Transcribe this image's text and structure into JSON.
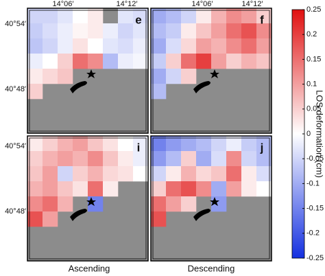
{
  "x_labels": [
    "14°06′",
    "14°12′"
  ],
  "y_labels": [
    "40°54′",
    "40°48′"
  ],
  "columns": [
    "Ascending",
    "Descending"
  ],
  "panels": [
    {
      "letter": "e",
      "grid": [
        [
          -0.05,
          -0.05,
          -0.03,
          0,
          0.02,
          null,
          -0.03,
          -0.04
        ],
        [
          -0.06,
          -0.04,
          -0.02,
          0.01,
          0.02,
          -0.02,
          -0.05,
          -0.03
        ],
        [
          -0.07,
          -0.05,
          -0.02,
          0.03,
          0,
          -0.03,
          -0.04,
          -0.02
        ],
        [
          -0.02,
          0,
          0.05,
          0.15,
          0.12,
          -0.08,
          -0.02,
          -0.01
        ],
        [
          0.02,
          0.04,
          0.06,
          null,
          null,
          null,
          null,
          null
        ],
        [
          0.05,
          null,
          null,
          null,
          null,
          null,
          null,
          null
        ]
      ]
    },
    {
      "letter": "f",
      "grid": [
        [
          -0.1,
          -0.08,
          -0.05,
          0.02,
          0.08,
          0.12,
          0.1,
          0.05
        ],
        [
          -0.08,
          -0.06,
          0.02,
          0.06,
          0.1,
          0.15,
          0.18,
          0.12
        ],
        [
          -0.1,
          -0.04,
          0.04,
          0.1,
          0.08,
          0.12,
          0.15,
          0.1
        ],
        [
          -0.06,
          0.05,
          0.15,
          0.2,
          0.1,
          0.05,
          0.08,
          0.06
        ],
        [
          -0.1,
          -0.05,
          0.05,
          null,
          null,
          null,
          null,
          null
        ],
        [
          -0.08,
          null,
          null,
          null,
          null,
          null,
          null,
          null
        ]
      ]
    },
    {
      "letter": "i",
      "grid": [
        [
          0.02,
          0.05,
          0.08,
          0.1,
          0.06,
          0.03,
          0,
          -0.02
        ],
        [
          0.05,
          0.08,
          0.1,
          0.08,
          0.12,
          0.06,
          0.02,
          -0.02
        ],
        [
          0.06,
          0.1,
          -0.05,
          0.05,
          0.08,
          0.04,
          0.03,
          0
        ],
        [
          0.08,
          0.1,
          0.06,
          0.03,
          0.15,
          0.02,
          null,
          null
        ],
        [
          0.12,
          0.15,
          0.08,
          null,
          -0.15,
          null,
          null,
          null
        ],
        [
          0.18,
          0.1,
          null,
          null,
          null,
          null,
          null,
          null
        ]
      ]
    },
    {
      "letter": "j",
      "grid": [
        [
          -0.15,
          -0.12,
          -0.1,
          -0.08,
          -0.05,
          -0.02,
          -0.06,
          -0.08
        ],
        [
          -0.12,
          -0.08,
          0.05,
          -0.1,
          -0.04,
          0.12,
          -0.05,
          -0.08
        ],
        [
          -0.05,
          0.02,
          0.08,
          0.04,
          0.06,
          0.15,
          0.02,
          -0.04
        ],
        [
          0.05,
          0.15,
          0.18,
          0.12,
          -0.1,
          0.1,
          0.02,
          0
        ],
        [
          0.15,
          0.1,
          0.05,
          null,
          -0.12,
          null,
          null,
          null
        ],
        [
          0.18,
          null,
          null,
          null,
          null,
          null,
          null,
          null
        ]
      ]
    }
  ],
  "colorbar": {
    "label": "LOS deformation (cm)",
    "lim": [
      -0.25,
      0.25
    ],
    "ticks": [
      0.25,
      0.2,
      0.15,
      0.1,
      0.05,
      0,
      -0.05,
      -0.1,
      -0.15,
      -0.2,
      -0.25
    ]
  }
}
